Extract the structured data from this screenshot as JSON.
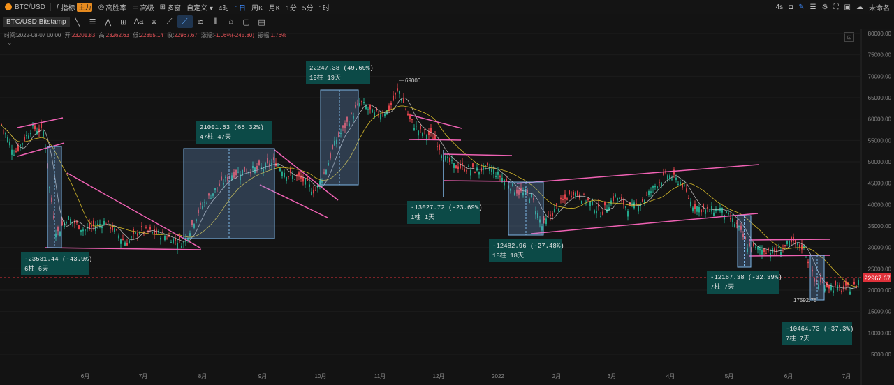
{
  "toolbar": {
    "symbol": "BTC/USD",
    "items": [
      {
        "id": "indicator",
        "label": "指标",
        "icon": "indicator-icon"
      },
      {
        "id": "main",
        "label": "主力"
      },
      {
        "id": "win-rate",
        "label": "高胜率",
        "icon": "target-icon"
      },
      {
        "id": "advanced",
        "label": "高级",
        "icon": "briefcase-icon"
      },
      {
        "id": "multi-window",
        "label": "多窗",
        "icon": "grid-icon"
      },
      {
        "id": "custom",
        "label": "自定义 ▾"
      }
    ],
    "intervals": [
      {
        "label": "4时",
        "active": false
      },
      {
        "label": "1日",
        "active": true
      },
      {
        "label": "周K",
        "active": false
      },
      {
        "label": "月K",
        "active": false
      },
      {
        "label": "1分",
        "active": false
      },
      {
        "label": "5分",
        "active": false
      },
      {
        "label": "1时",
        "active": false
      }
    ],
    "right": {
      "timer": "4s",
      "unnamed": "未命名"
    }
  },
  "drawbar": {
    "symbol_exchange": "BTC/USD Bitstamp",
    "tools": [
      "line-tool-icon",
      "hline-tool-icon",
      "wave-tool-icon",
      "plus-box-icon",
      "text-tool-icon",
      "ruler-icon",
      "pattern-icon",
      "measure-icon",
      "brush-icon",
      "align-icon",
      "bars-icon",
      "trash-bin-icon",
      "copy-icon",
      "delete-icon"
    ]
  },
  "ohlc": {
    "time": "时间:2022-08-07 00:00",
    "open_label": "开:",
    "open": "23201.83",
    "high_label": "高:",
    "high": "23262.63",
    "low_label": "低:",
    "low": "22855.14",
    "close_label": "收:",
    "close": "22967.67",
    "change_label": "涨幅:",
    "change": "-1.06%(-245.80)",
    "amp_label": "振幅:",
    "amp": "1.76%"
  },
  "colors": {
    "up": "#23a68a",
    "down": "#e0434b",
    "ma_fast": "#d9d9d9",
    "ma_slow": "#d4b82a",
    "pattern": "#f062b4",
    "box": "#7fb7e8",
    "label_bg": "#0c4a47",
    "price_line": "#e0313a"
  },
  "chart_data": {
    "type": "candlestick",
    "series": [
      {
        "name": "BTC/USD"
      }
    ],
    "yaxis": {
      "ticks": [
        80000,
        75000,
        70000,
        65000,
        60000,
        55000,
        50000,
        45000,
        40000,
        35000,
        30000,
        25000,
        20000,
        15000,
        10000,
        5000
      ],
      "tick_labels": [
        "80000.00",
        "75000.00",
        "70000.00",
        "65000.00",
        "60000.00",
        "55000.00",
        "50000.00",
        "45000.00",
        "40000.00",
        "35000.00",
        "30000.00",
        "25000.00",
        "20000.00",
        "15000.00",
        "10000.00",
        "5000.00"
      ]
    },
    "xaxis": {
      "tick_labels": [
        "6月",
        "7月",
        "8月",
        "9月",
        "10月",
        "11月",
        "12月",
        "2022",
        "2月",
        "3月",
        "4月",
        "5月",
        "6月",
        "7月"
      ]
    },
    "last_price": "22967.67",
    "annotations": [
      {
        "value": "-23531.44 (-43.9%)",
        "bars": "6柱 6天"
      },
      {
        "value": "21001.53 (65.32%)",
        "bars": "47柱 47天"
      },
      {
        "value": "22247.38 (49.69%)",
        "bars": "19柱 19天"
      },
      {
        "value": "-13027.72 (-23.69%)",
        "bars": "1柱 1天"
      },
      {
        "value": "-12482.96 (-27.48%)",
        "bars": "18柱 18天"
      },
      {
        "value": "-12167.38 (-32.39%)",
        "bars": "7柱 7天"
      },
      {
        "value": "-10464.73 (-37.3%)",
        "bars": "7柱 7天"
      }
    ],
    "markers": [
      {
        "label": "69000"
      },
      {
        "label": "17592.78"
      }
    ]
  }
}
